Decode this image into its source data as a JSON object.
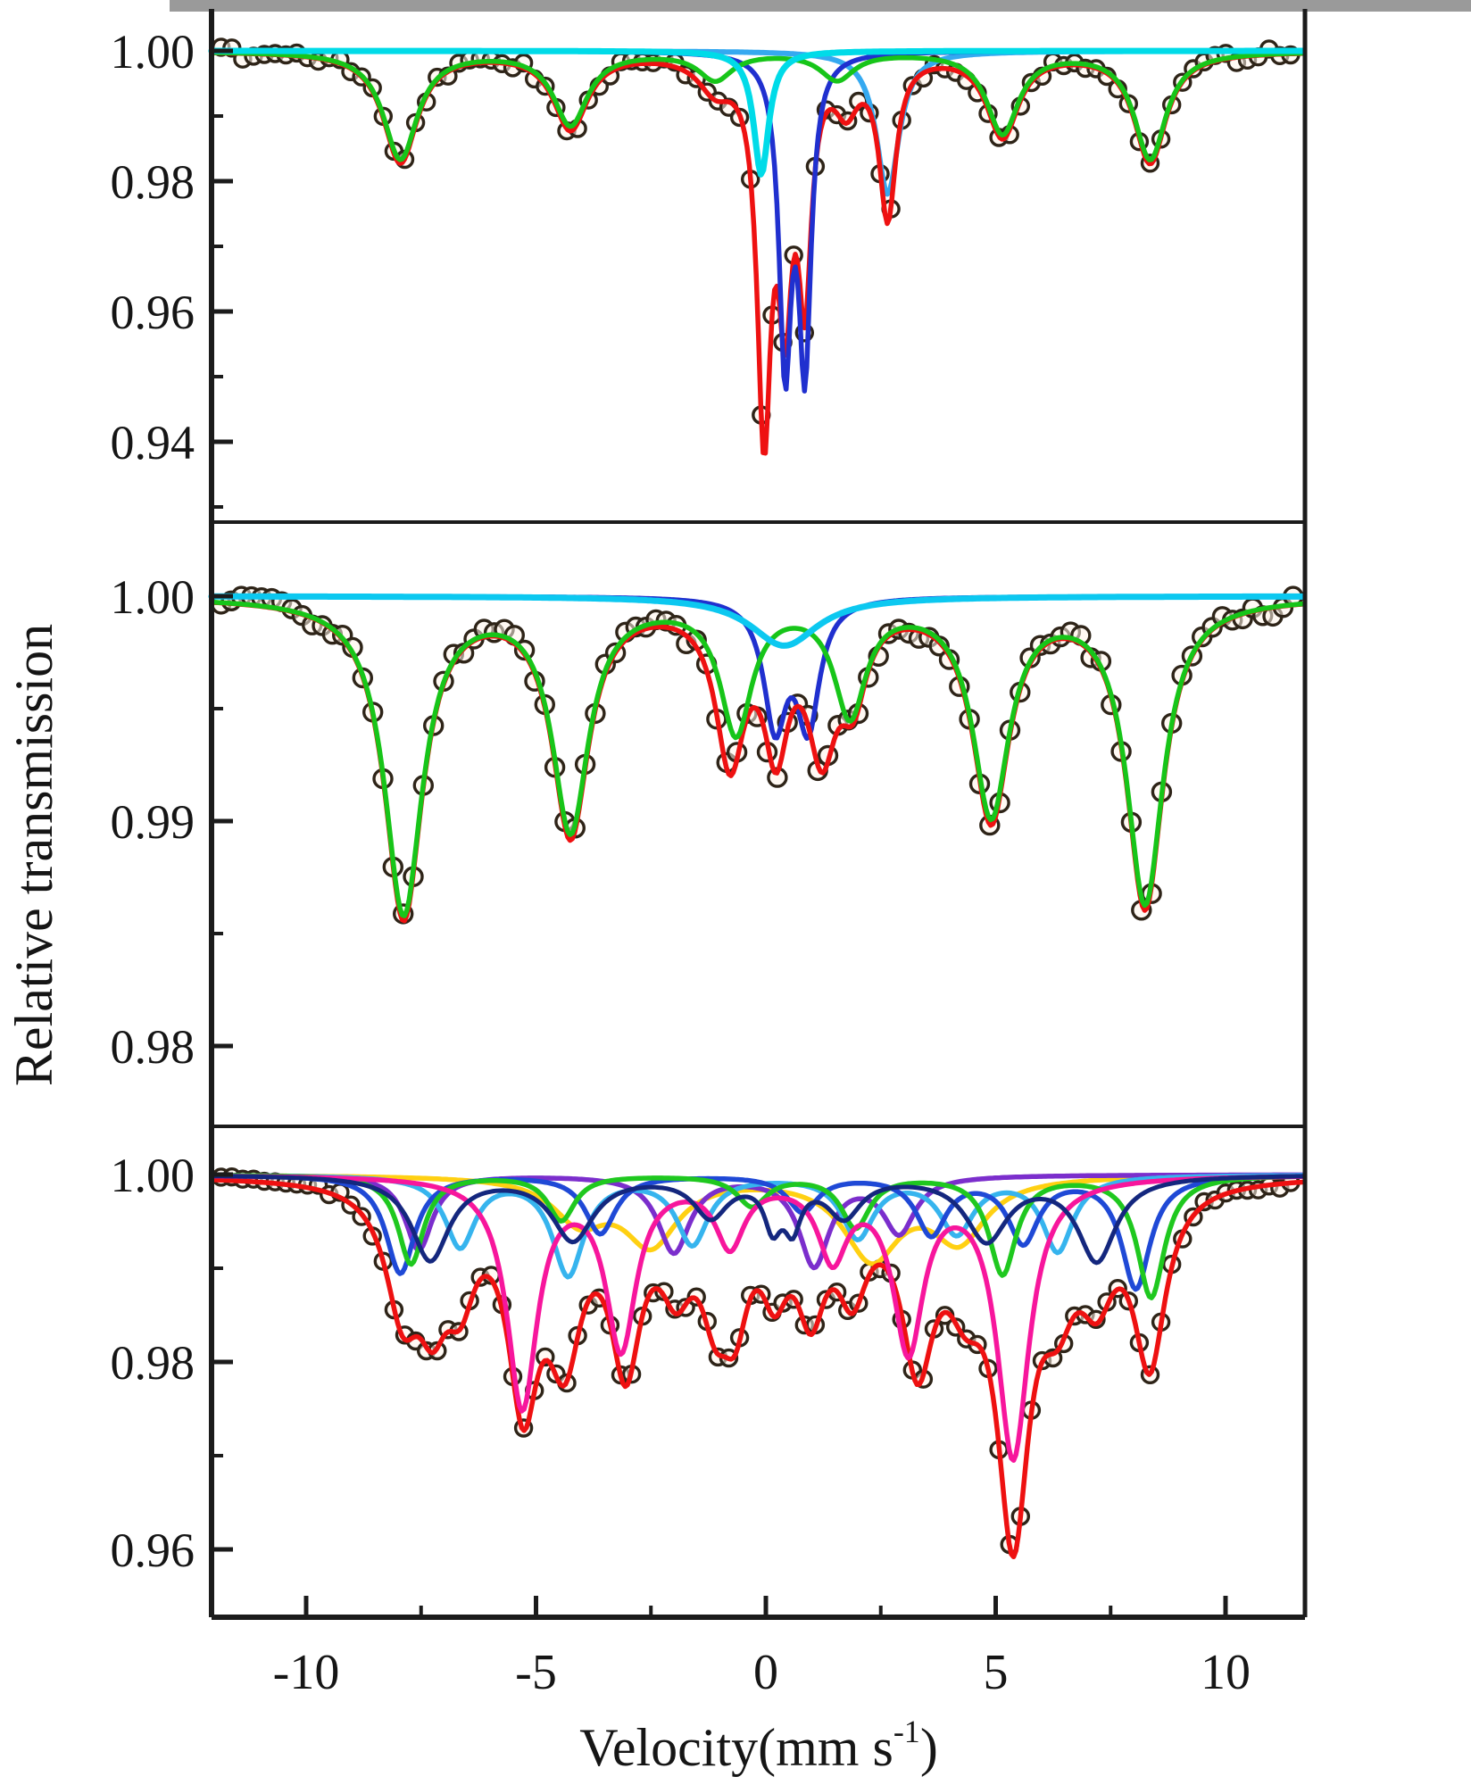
{
  "figure": {
    "background": "#ffffff",
    "frame_color": "#1b1b1b",
    "top_edge_color": "#9a9a9a"
  },
  "chart_data": {
    "type": "line",
    "title": "",
    "ylabel": "Relative transmission",
    "xlabel": {
      "main": "Velocity(mm s",
      "sup": "-1",
      "close": ")"
    },
    "x_axis": {
      "range": [
        -12,
        11.7
      ],
      "ticks": [
        {
          "v": -10,
          "label": "-10"
        },
        {
          "v": -5,
          "label": "-5"
        },
        {
          "v": 0,
          "label": "0"
        },
        {
          "v": 5,
          "label": "5"
        },
        {
          "v": 10,
          "label": "10"
        }
      ],
      "minor": [
        -7.5,
        -2.5,
        2.5,
        7.5
      ]
    },
    "marker": {
      "stroke": "#2e2418",
      "stroke_width": 3.4,
      "fill": "#fff4ea",
      "fill_opacity": 0.55
    },
    "panels": [
      {
        "name": "spectrum-top",
        "ylim": [
          0.9276,
          1.0064
        ],
        "yticks": [
          {
            "v": 1.0,
            "label": "1.00"
          },
          {
            "v": 0.98,
            "label": "0.98"
          },
          {
            "v": 0.96,
            "label": "0.96"
          },
          {
            "v": 0.94,
            "label": "0.94"
          }
        ],
        "yminor": [
          0.99,
          0.97,
          0.95,
          0.93
        ],
        "noise": 0.0009,
        "seed": 7,
        "sample_step": 0.235,
        "marker_r": 9,
        "series": [
          {
            "name": "singlet-skyblue",
            "color": "#35a9f0",
            "width": 6,
            "lines": [
              [
                2.65,
                0.022,
                0.3
              ]
            ]
          },
          {
            "name": "total-fit",
            "role": "total",
            "color": "#ee1111",
            "width": 5.5,
            "lines": [
              [
                -7.95,
                0.017,
                0.45
              ],
              [
                -4.25,
                0.0117,
                0.45
              ],
              [
                -1.1,
                0.0048,
                0.45
              ],
              [
                -0.04,
                0.056,
                0.18
              ],
              [
                0.42,
                0.034,
                0.17
              ],
              [
                0.85,
                0.034,
                0.17
              ],
              [
                1.75,
                0.007,
                0.3
              ],
              [
                2.65,
                0.0245,
                0.22
              ],
              [
                5.15,
                0.0128,
                0.42
              ],
              [
                8.36,
                0.017,
                0.42
              ]
            ]
          },
          {
            "name": "doublet-navy",
            "color": "#2030cf",
            "width": 5.5,
            "lines": [
              [
                0.42,
                0.0465,
                0.16
              ],
              [
                0.85,
                0.0465,
                0.16
              ]
            ]
          },
          {
            "name": "sextet-green",
            "color": "#17c519",
            "width": 5.5,
            "lines": [
              [
                -7.95,
                0.0165,
                0.45
              ],
              [
                -4.25,
                0.0112,
                0.45
              ],
              [
                -1.1,
                0.0042,
                0.45
              ],
              [
                1.55,
                0.0042,
                0.45
              ],
              [
                5.15,
                0.0125,
                0.42
              ],
              [
                8.36,
                0.0165,
                0.42
              ]
            ]
          },
          {
            "name": "singlet-cyan",
            "color": "#00dbe8",
            "width": 7,
            "lines": [
              [
                -0.1,
                0.019,
                0.2
              ]
            ]
          }
        ]
      },
      {
        "name": "spectrum-middle",
        "ylim": [
          0.9782,
          1.0033
        ],
        "yticks": [
          {
            "v": 1.0,
            "label": "1.00"
          },
          {
            "v": 0.99,
            "label": "0.99"
          },
          {
            "v": 0.98,
            "label": "0.98"
          }
        ],
        "yminor": [
          0.995,
          0.985
        ],
        "noise": 0.00042,
        "seed": 13,
        "sample_step": 0.22,
        "marker_r": 10,
        "series": [
          {
            "name": "doublet-blue",
            "color": "#2030cf",
            "width": 5.5,
            "lines": [
              [
                0.2,
                0.0055,
                0.3
              ],
              [
                0.92,
                0.0055,
                0.3
              ]
            ]
          },
          {
            "name": "total-fit",
            "role": "total",
            "color": "#ee1111",
            "width": 5.5,
            "lines": [
              [
                -7.88,
                0.0142,
                0.5
              ],
              [
                -4.25,
                0.0104,
                0.48
              ],
              [
                -0.78,
                0.0068,
                0.38
              ],
              [
                0.22,
                0.0058,
                0.32
              ],
              [
                1.22,
                0.006,
                0.38
              ],
              [
                1.9,
                0.0035,
                0.35
              ],
              [
                4.9,
                0.0097,
                0.48
              ],
              [
                8.25,
                0.0137,
                0.48
              ]
            ]
          },
          {
            "name": "sextet-green",
            "color": "#17c519",
            "width": 5.5,
            "lines": [
              [
                -7.88,
                0.014,
                0.5
              ],
              [
                -4.25,
                0.0102,
                0.48
              ],
              [
                -0.65,
                0.0058,
                0.42
              ],
              [
                1.83,
                0.005,
                0.42
              ],
              [
                4.9,
                0.0095,
                0.48
              ],
              [
                8.25,
                0.0135,
                0.48
              ]
            ]
          },
          {
            "name": "singlet-cyan",
            "color": "#0cc8f0",
            "width": 7,
            "lines": [
              [
                0.4,
                0.0022,
                0.9
              ]
            ]
          }
        ]
      },
      {
        "name": "spectrum-bottom",
        "ylim": [
          0.9528,
          1.0051
        ],
        "yticks": [
          {
            "v": 1.0,
            "label": "1.00"
          },
          {
            "v": 0.98,
            "label": "0.98"
          },
          {
            "v": 0.96,
            "label": "0.96"
          }
        ],
        "yminor": [
          0.99,
          0.97
        ],
        "noise": 0.00055,
        "seed": 29,
        "sample_step": 0.235,
        "marker_r": 9,
        "series": [
          {
            "name": "sextet-yellow",
            "color": "#ffd012",
            "width": 5.5,
            "lines": [
              [
                -4.05,
                0.0045,
                0.7
              ],
              [
                -2.5,
                0.007,
                0.72
              ],
              [
                2.3,
                0.0085,
                0.75
              ],
              [
                4.2,
                0.0065,
                0.72
              ]
            ]
          },
          {
            "name": "sextet-purple",
            "color": "#7b2ecc",
            "width": 5.5,
            "lines": [
              [
                -7.55,
                0.008,
                0.36
              ],
              [
                -2.0,
                0.0082,
                0.42
              ],
              [
                1.05,
                0.0095,
                0.4
              ],
              [
                2.9,
                0.006,
                0.42
              ]
            ]
          },
          {
            "name": "sextet-skyblue",
            "color": "#36b4ee",
            "width": 5.5,
            "lines": [
              [
                -6.65,
                0.0075,
                0.4
              ],
              [
                -4.3,
                0.0105,
                0.42
              ],
              [
                -1.6,
                0.0072,
                0.42
              ],
              [
                2.0,
                0.0065,
                0.42
              ],
              [
                4.15,
                0.006,
                0.45
              ],
              [
                6.35,
                0.008,
                0.4
              ]
            ]
          },
          {
            "name": "sextet-blue",
            "color": "#1f49d6",
            "width": 5.5,
            "lines": [
              [
                -7.95,
                0.0105,
                0.38
              ],
              [
                -3.6,
                0.0062,
                0.4
              ],
              [
                0.8,
                0.0038,
                0.4
              ],
              [
                3.6,
                0.0062,
                0.4
              ],
              [
                5.6,
                0.007,
                0.4
              ],
              [
                8.05,
                0.012,
                0.38
              ]
            ]
          },
          {
            "name": "sextet-green",
            "color": "#1fc81f",
            "width": 5.5,
            "lines": [
              [
                -7.72,
                0.0095,
                0.34
              ],
              [
                -4.45,
                0.0048,
                0.36
              ],
              [
                -0.3,
                0.0032,
                0.4
              ],
              [
                1.95,
                0.0055,
                0.38
              ],
              [
                5.15,
                0.0105,
                0.36
              ],
              [
                8.38,
                0.013,
                0.36
              ]
            ]
          },
          {
            "name": "total-fit",
            "role": "total",
            "color": "#ee1111",
            "width": 5.5,
            "lines": [
              [
                -7.9,
                0.0125,
                0.45
              ],
              [
                -7.25,
                0.0105,
                0.4
              ],
              [
                -6.65,
                0.009,
                0.4
              ],
              [
                -5.28,
                0.0215,
                0.4
              ],
              [
                -4.38,
                0.016,
                0.45
              ],
              [
                -3.05,
                0.0178,
                0.4
              ],
              [
                -1.95,
                0.0085,
                0.42
              ],
              [
                -1.1,
                0.01,
                0.38
              ],
              [
                -0.67,
                0.0105,
                0.35
              ],
              [
                0.19,
                0.0085,
                0.35
              ],
              [
                0.98,
                0.0115,
                0.38
              ],
              [
                1.88,
                0.0095,
                0.4
              ],
              [
                3.3,
                0.0175,
                0.42
              ],
              [
                4.35,
                0.0085,
                0.5
              ],
              [
                5.38,
                0.0355,
                0.42
              ],
              [
                6.35,
                0.0092,
                0.45
              ],
              [
                7.2,
                0.0092,
                0.45
              ],
              [
                8.35,
                0.0185,
                0.42
              ]
            ]
          },
          {
            "name": "sextet-magenta",
            "color": "#f7169c",
            "width": 5.5,
            "lines": [
              [
                -5.3,
                0.0245,
                0.4
              ],
              [
                -3.15,
                0.018,
                0.4
              ],
              [
                -0.78,
                0.007,
                0.38
              ],
              [
                1.45,
                0.0082,
                0.38
              ],
              [
                3.1,
                0.018,
                0.4
              ],
              [
                5.38,
                0.0298,
                0.42
              ]
            ]
          },
          {
            "name": "sextet-navy",
            "color": "#14277e",
            "width": 5,
            "lines": [
              [
                -7.3,
                0.009,
                0.5
              ],
              [
                -4.2,
                0.0068,
                0.55
              ],
              [
                -1.2,
                0.0042,
                0.45
              ],
              [
                0.15,
                0.0048,
                0.22
              ],
              [
                0.58,
                0.0048,
                0.22
              ],
              [
                1.7,
                0.0042,
                0.45
              ],
              [
                4.8,
                0.0068,
                0.55
              ],
              [
                7.2,
                0.009,
                0.5
              ]
            ]
          }
        ]
      }
    ]
  }
}
